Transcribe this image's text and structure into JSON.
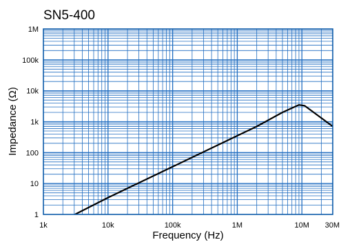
{
  "chart_data": {
    "type": "line",
    "title": "SN5-400",
    "xlabel": "Frequency (Hz)",
    "ylabel": "Impedance (Ω)",
    "x_scale": "log",
    "y_scale": "log",
    "xlim": [
      1000,
      30000000
    ],
    "ylim": [
      1,
      1000000
    ],
    "grid": true,
    "x_ticks": [
      {
        "value": 1000,
        "label": "1k"
      },
      {
        "value": 10000,
        "label": "10k"
      },
      {
        "value": 100000,
        "label": "100k"
      },
      {
        "value": 1000000,
        "label": "1M"
      },
      {
        "value": 10000000,
        "label": "10M"
      },
      {
        "value": 30000000,
        "label": "30M"
      }
    ],
    "y_ticks": [
      {
        "value": 1,
        "label": "1"
      },
      {
        "value": 10,
        "label": "10"
      },
      {
        "value": 100,
        "label": "100"
      },
      {
        "value": 1000,
        "label": "1k"
      },
      {
        "value": 10000,
        "label": "10k"
      },
      {
        "value": 100000,
        "label": "100k"
      },
      {
        "value": 1000000,
        "label": "1M"
      }
    ],
    "series": [
      {
        "color": "#000000",
        "x": [
          2500,
          10000,
          100000,
          1000000,
          2000000,
          5000000,
          9000000,
          11000000,
          30000000
        ],
        "y": [
          0.8,
          3.5,
          35,
          350,
          700,
          2000,
          3500,
          3300,
          700
        ]
      }
    ]
  }
}
